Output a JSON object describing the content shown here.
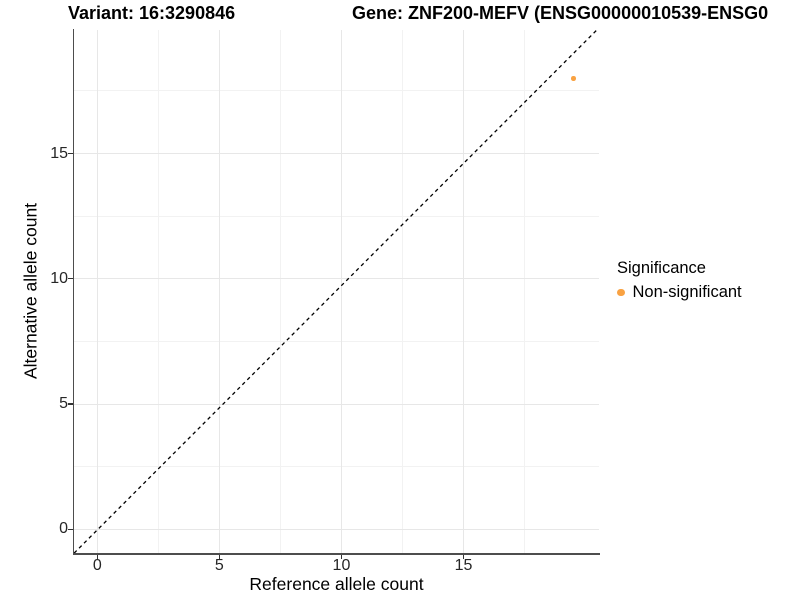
{
  "chart_data": {
    "type": "scatter",
    "title_left": "Variant: 16:3290846",
    "title_right": "Gene: ZNF200-MEFV (ENSG00000010539-ENSG0",
    "xlabel": "Reference allele count",
    "ylabel": "Alternative allele count",
    "x_ticks": [
      0,
      5,
      10,
      15
    ],
    "y_ticks": [
      0,
      5,
      10,
      15
    ],
    "x_minor": [
      2.5,
      7.5,
      12.5,
      17.5
    ],
    "y_minor": [
      2.5,
      7.5,
      12.5,
      17.5
    ],
    "xlim": [
      -0.955,
      20.55
    ],
    "ylim": [
      -0.945,
      19.93
    ],
    "grid": true,
    "points": [
      {
        "x": 19.5,
        "y": 18,
        "series": "Non-significant",
        "color": "#F9A242"
      }
    ],
    "reference_line": {
      "meaning": "y = x identity line",
      "style": "dashed",
      "x1": -0.95,
      "y1": -0.95,
      "x2": 20.45,
      "y2": 19.92,
      "color": "#000000"
    },
    "legend": {
      "title": "Significance",
      "position": "right",
      "items": [
        {
          "label": "Non-significant",
          "color": "#F9A242",
          "marker": "circle"
        }
      ]
    },
    "colors": {
      "point": "#F9A242",
      "axis_line": "#4D4D4D",
      "tick_mark": "#333333",
      "grid_major": "#E7E7E7",
      "grid_minor": "#F2F2F2",
      "background": "#FFFFFF"
    }
  }
}
